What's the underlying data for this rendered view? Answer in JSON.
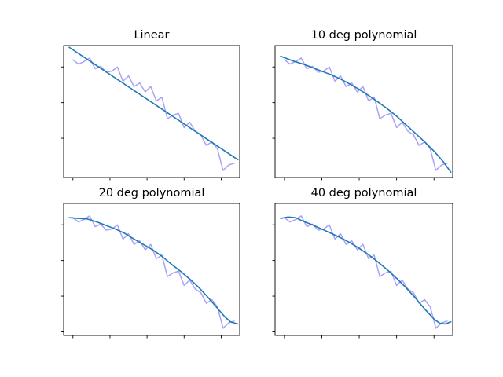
{
  "chart_data": [
    {
      "type": "line",
      "title": "Linear",
      "xlabel": "",
      "ylabel": "",
      "tick_labels_shown": false,
      "xlim": [
        -0.5,
        9.0
      ],
      "ylim": [
        -0.1,
        3.6
      ],
      "xticks": [
        0,
        2,
        4,
        6,
        8
      ],
      "yticks": [
        0,
        1,
        2,
        3
      ],
      "series": [
        {
          "role": "data",
          "color": "#a9a2f7",
          "x": [
            0.0,
            0.3,
            0.6,
            0.9,
            1.2,
            1.5,
            1.8,
            2.1,
            2.4,
            2.7,
            3.0,
            3.3,
            3.6,
            3.9,
            4.2,
            4.5,
            4.8,
            5.1,
            5.4,
            5.7,
            6.0,
            6.3,
            6.6,
            6.9,
            7.2,
            7.5,
            7.8,
            8.1,
            8.4,
            8.7
          ],
          "y": [
            3.2,
            3.08,
            3.15,
            3.25,
            2.95,
            3.02,
            2.85,
            2.88,
            3.0,
            2.6,
            2.75,
            2.45,
            2.55,
            2.3,
            2.45,
            2.05,
            2.15,
            1.55,
            1.65,
            1.7,
            1.3,
            1.45,
            1.2,
            1.1,
            0.8,
            0.9,
            0.7,
            0.1,
            0.25,
            0.3
          ]
        },
        {
          "role": "fit",
          "color": "#1f77b4",
          "x": [
            -0.2,
            8.9
          ],
          "y": [
            3.55,
            0.4
          ]
        }
      ]
    },
    {
      "type": "line",
      "title": "10 deg polynomial",
      "xlabel": "",
      "ylabel": "",
      "tick_labels_shown": false,
      "xlim": [
        -0.5,
        9.0
      ],
      "ylim": [
        -0.1,
        3.6
      ],
      "xticks": [
        0,
        2,
        4,
        6,
        8
      ],
      "yticks": [
        0,
        1,
        2,
        3
      ],
      "series": [
        {
          "role": "data",
          "color": "#a9a2f7",
          "x": [
            0.0,
            0.3,
            0.6,
            0.9,
            1.2,
            1.5,
            1.8,
            2.1,
            2.4,
            2.7,
            3.0,
            3.3,
            3.6,
            3.9,
            4.2,
            4.5,
            4.8,
            5.1,
            5.4,
            5.7,
            6.0,
            6.3,
            6.6,
            6.9,
            7.2,
            7.5,
            7.8,
            8.1,
            8.4,
            8.7
          ],
          "y": [
            3.2,
            3.08,
            3.15,
            3.25,
            2.95,
            3.02,
            2.85,
            2.88,
            3.0,
            2.6,
            2.75,
            2.45,
            2.55,
            2.3,
            2.45,
            2.05,
            2.15,
            1.55,
            1.65,
            1.7,
            1.3,
            1.45,
            1.2,
            1.1,
            0.8,
            0.9,
            0.7,
            0.1,
            0.25,
            0.3
          ]
        },
        {
          "role": "fit",
          "color": "#1f77b4",
          "x": [
            -0.2,
            0.5,
            1.0,
            1.5,
            2.0,
            2.5,
            3.0,
            3.5,
            4.0,
            4.5,
            5.0,
            5.5,
            6.0,
            6.5,
            7.0,
            7.5,
            8.0,
            8.5,
            8.9
          ],
          "y": [
            3.3,
            3.16,
            3.08,
            2.98,
            2.88,
            2.78,
            2.66,
            2.52,
            2.37,
            2.2,
            2.02,
            1.83,
            1.62,
            1.38,
            1.14,
            0.9,
            0.64,
            0.34,
            0.05
          ]
        }
      ]
    },
    {
      "type": "line",
      "title": "20 deg polynomial",
      "xlabel": "",
      "ylabel": "",
      "tick_labels_shown": false,
      "xlim": [
        -0.5,
        9.0
      ],
      "ylim": [
        -0.1,
        3.6
      ],
      "xticks": [
        0,
        2,
        4,
        6,
        8
      ],
      "yticks": [
        0,
        1,
        2,
        3
      ],
      "series": [
        {
          "role": "data",
          "color": "#a9a2f7",
          "x": [
            0.0,
            0.3,
            0.6,
            0.9,
            1.2,
            1.5,
            1.8,
            2.1,
            2.4,
            2.7,
            3.0,
            3.3,
            3.6,
            3.9,
            4.2,
            4.5,
            4.8,
            5.1,
            5.4,
            5.7,
            6.0,
            6.3,
            6.6,
            6.9,
            7.2,
            7.5,
            7.8,
            8.1,
            8.4,
            8.7
          ],
          "y": [
            3.2,
            3.08,
            3.15,
            3.25,
            2.95,
            3.02,
            2.85,
            2.88,
            3.0,
            2.6,
            2.75,
            2.45,
            2.55,
            2.3,
            2.45,
            2.05,
            2.15,
            1.55,
            1.65,
            1.7,
            1.3,
            1.45,
            1.2,
            1.1,
            0.8,
            0.9,
            0.7,
            0.1,
            0.25,
            0.3
          ]
        },
        {
          "role": "fit",
          "color": "#1f77b4",
          "x": [
            -0.2,
            0.3,
            0.8,
            1.3,
            1.8,
            2.3,
            2.8,
            3.3,
            3.8,
            4.3,
            4.8,
            5.3,
            5.8,
            6.3,
            6.8,
            7.3,
            7.8,
            8.2,
            8.5,
            8.9
          ],
          "y": [
            3.2,
            3.18,
            3.16,
            3.08,
            2.98,
            2.88,
            2.76,
            2.6,
            2.45,
            2.3,
            2.12,
            1.9,
            1.7,
            1.48,
            1.24,
            0.96,
            0.66,
            0.42,
            0.28,
            0.22
          ]
        }
      ]
    },
    {
      "type": "line",
      "title": "40 deg polynomial",
      "xlabel": "",
      "ylabel": "",
      "tick_labels_shown": false,
      "xlim": [
        -0.5,
        9.0
      ],
      "ylim": [
        -0.1,
        3.6
      ],
      "xticks": [
        0,
        2,
        4,
        6,
        8
      ],
      "yticks": [
        0,
        1,
        2,
        3
      ],
      "series": [
        {
          "role": "data",
          "color": "#a9a2f7",
          "x": [
            0.0,
            0.3,
            0.6,
            0.9,
            1.2,
            1.5,
            1.8,
            2.1,
            2.4,
            2.7,
            3.0,
            3.3,
            3.6,
            3.9,
            4.2,
            4.5,
            4.8,
            5.1,
            5.4,
            5.7,
            6.0,
            6.3,
            6.6,
            6.9,
            7.2,
            7.5,
            7.8,
            8.1,
            8.4,
            8.7
          ],
          "y": [
            3.2,
            3.08,
            3.15,
            3.25,
            2.95,
            3.02,
            2.85,
            2.88,
            3.0,
            2.6,
            2.75,
            2.45,
            2.55,
            2.3,
            2.45,
            2.05,
            2.15,
            1.55,
            1.65,
            1.7,
            1.3,
            1.45,
            1.2,
            1.1,
            0.8,
            0.9,
            0.7,
            0.1,
            0.25,
            0.3
          ]
        },
        {
          "role": "fit",
          "color": "#1f77b4",
          "x": [
            -0.2,
            0.2,
            0.6,
            1.0,
            1.5,
            2.0,
            2.5,
            3.0,
            3.5,
            4.0,
            4.5,
            5.0,
            5.5,
            6.0,
            6.5,
            7.0,
            7.5,
            8.0,
            8.3,
            8.6,
            8.9
          ],
          "y": [
            3.18,
            3.22,
            3.2,
            3.1,
            3.0,
            2.88,
            2.76,
            2.64,
            2.5,
            2.34,
            2.16,
            1.96,
            1.74,
            1.5,
            1.24,
            0.95,
            0.64,
            0.36,
            0.24,
            0.22,
            0.28
          ]
        }
      ]
    }
  ]
}
